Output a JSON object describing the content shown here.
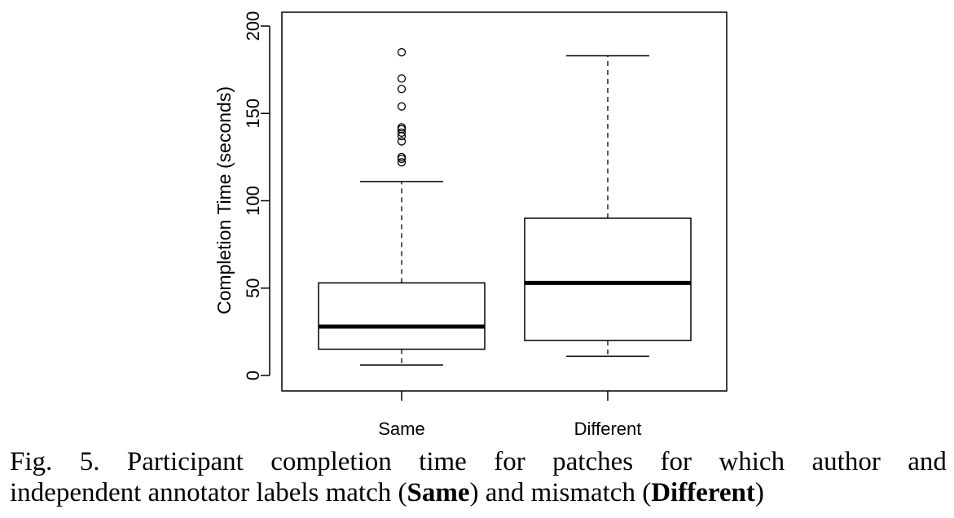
{
  "chart_data": {
    "type": "boxplot",
    "title": "",
    "xlabel": "",
    "ylabel": "Completion Time (seconds)",
    "ylim": [
      0,
      200
    ],
    "yticks": [
      0,
      50,
      100,
      150,
      200
    ],
    "categories": [
      "Same",
      "Different"
    ],
    "boxes": [
      {
        "name": "Same",
        "whisker_low": 6,
        "q1": 15,
        "median": 28,
        "q3": 53,
        "whisker_high": 111,
        "outliers": [
          122,
          124,
          125,
          134,
          137,
          139,
          141,
          142,
          154,
          164,
          170,
          185
        ]
      },
      {
        "name": "Different",
        "whisker_low": 11,
        "q1": 20,
        "median": 53,
        "q3": 90,
        "whisker_high": 183,
        "outliers": []
      }
    ],
    "grid": false
  },
  "caption": {
    "line1_words": [
      "Fig.",
      "5.",
      "Participant",
      "completion",
      "time",
      "for",
      "patches",
      "for",
      "which",
      "author",
      "and"
    ],
    "line2_pre": "independent annotator labels match (",
    "same": "Same",
    "line2_mid": ") and mismatch (",
    "different": "Different",
    "line2_post": ")"
  }
}
